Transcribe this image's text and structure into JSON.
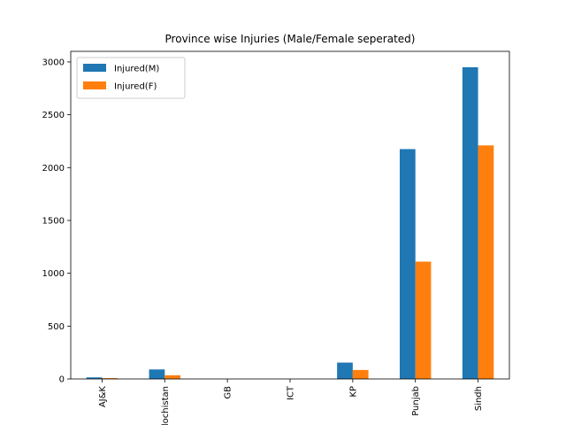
{
  "chart_data": {
    "type": "bar",
    "title": "Province wise Injuries (Male/Female seperated)",
    "xlabel": "",
    "ylabel": "",
    "categories": [
      "AJ&K",
      "Balochistan",
      "GB",
      "ICT",
      "KP",
      "Punjab",
      "Sindh"
    ],
    "category_labels_visible": [
      "AJ&K",
      "nistan",
      "GB",
      "ICT",
      "KP",
      "Punjab",
      "Sindh"
    ],
    "series": [
      {
        "name": "Injured(M)",
        "color": "#1f77b4",
        "values": [
          15,
          90,
          0,
          0,
          155,
          2175,
          2950
        ]
      },
      {
        "name": "Injured(F)",
        "color": "#ff7f0e",
        "values": [
          8,
          35,
          0,
          0,
          85,
          1110,
          2210
        ]
      }
    ],
    "ylim": [
      0,
      3100
    ],
    "yticks": [
      0,
      500,
      1000,
      1500,
      2000,
      2500,
      3000
    ],
    "grid": false,
    "legend_position": "top-left"
  }
}
